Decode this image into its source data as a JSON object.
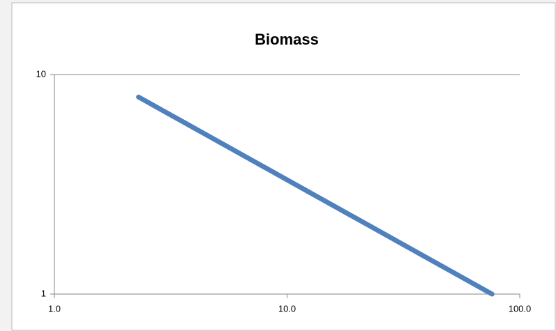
{
  "chart_data": {
    "type": "line",
    "title": "Biomass",
    "x": [
      2.3,
      76
    ],
    "series": [
      {
        "color": "#4f81bd",
        "values": [
          7.9,
          1
        ]
      }
    ],
    "xlim": [
      1,
      100
    ],
    "xticks": [
      {
        "value": 1,
        "label": "1.0"
      },
      {
        "value": 10,
        "label": "10.0"
      },
      {
        "value": 100,
        "label": "100.0"
      }
    ],
    "ylim": [
      1,
      10
    ],
    "yticks": [
      1,
      10
    ],
    "xlog": true,
    "ylog": true,
    "grid": true
  }
}
